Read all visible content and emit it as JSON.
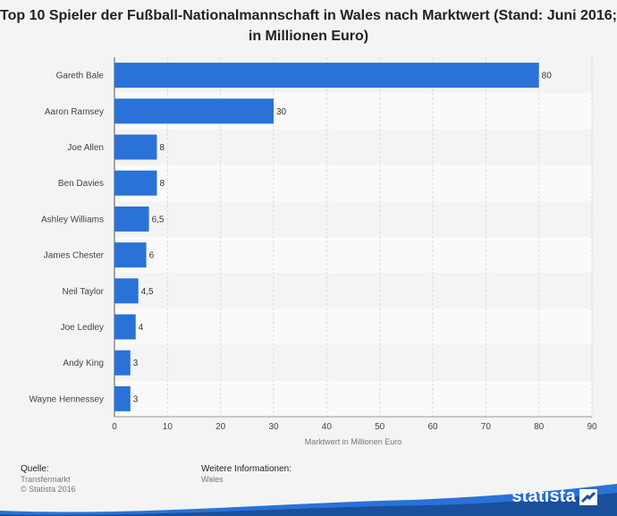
{
  "title": "Top 10 Spieler der Fußball-Nationalmannschaft in Wales nach Marktwert (Stand: Juni 2016; in Millionen Euro)",
  "chart_data": {
    "type": "bar",
    "orientation": "horizontal",
    "categories": [
      "Gareth Bale",
      "Aaron Ramsey",
      "Joe Allen",
      "Ben Davies",
      "Ashley Williams",
      "James Chester",
      "Neil Taylor",
      "Joe Ledley",
      "Andy King",
      "Wayne Hennessey"
    ],
    "values": [
      80,
      30,
      8,
      8,
      6.5,
      6,
      4.5,
      4,
      3,
      3
    ],
    "value_labels": [
      "80",
      "30",
      "8",
      "8",
      "6,5",
      "6",
      "4,5",
      "4",
      "3",
      "3"
    ],
    "xlabel": "Marktwert in Millionen Euro",
    "ylabel": "",
    "xlim": [
      0,
      90
    ],
    "xticks": [
      0,
      10,
      20,
      30,
      40,
      50,
      60,
      70,
      80,
      90
    ],
    "grid": true,
    "bar_color": "#2a72d8"
  },
  "footer": {
    "source_heading": "Quelle:",
    "source_line1": "Transfermarkt",
    "source_line2": "© Statista 2016",
    "info_heading": "Weitere Informationen:",
    "info_line1": "Wales"
  },
  "logo": {
    "text": "statista",
    "wave_color": "#1a4f9c",
    "accent_color": "#2a72d8"
  }
}
